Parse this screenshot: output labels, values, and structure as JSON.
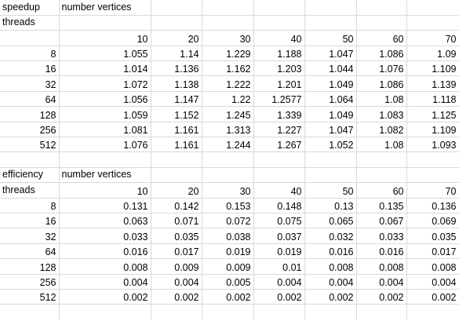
{
  "sheet": {
    "blocks": [
      {
        "label": "speedup",
        "vertices_label": "number vertices",
        "threads_label": "threads",
        "vertex_counts": [
          "10",
          "20",
          "30",
          "40",
          "50",
          "60",
          "70"
        ],
        "rows": [
          {
            "threads": "8",
            "values": [
              "1.055",
              "1.14",
              "1.229",
              "1.188",
              "1.047",
              "1.086",
              "1.09"
            ]
          },
          {
            "threads": "16",
            "values": [
              "1.014",
              "1.136",
              "1.162",
              "1.203",
              "1.044",
              "1.076",
              "1.109"
            ]
          },
          {
            "threads": "32",
            "values": [
              "1.072",
              "1.138",
              "1.222",
              "1.201",
              "1.049",
              "1.086",
              "1.139"
            ]
          },
          {
            "threads": "64",
            "values": [
              "1.056",
              "1.147",
              "1.22",
              "1.2577",
              "1.064",
              "1.08",
              "1.118"
            ]
          },
          {
            "threads": "128",
            "values": [
              "1.059",
              "1.152",
              "1.245",
              "1.339",
              "1.049",
              "1.083",
              "1.125"
            ]
          },
          {
            "threads": "256",
            "values": [
              "1.081",
              "1.161",
              "1.313",
              "1.227",
              "1.047",
              "1.082",
              "1.109"
            ]
          },
          {
            "threads": "512",
            "values": [
              "1.076",
              "1.161",
              "1.244",
              "1.267",
              "1.052",
              "1.08",
              "1.093"
            ]
          }
        ]
      },
      {
        "label": "efficiency",
        "vertices_label": "number vertices",
        "threads_label": "threads",
        "vertex_counts": [
          "10",
          "20",
          "30",
          "40",
          "50",
          "60",
          "70"
        ],
        "rows": [
          {
            "threads": "8",
            "values": [
              "0.131",
              "0.142",
              "0.153",
              "0.148",
              "0.13",
              "0.135",
              "0.136"
            ]
          },
          {
            "threads": "16",
            "values": [
              "0.063",
              "0.071",
              "0.072",
              "0.075",
              "0.065",
              "0.067",
              "0.069"
            ]
          },
          {
            "threads": "32",
            "values": [
              "0.033",
              "0.035",
              "0.038",
              "0.037",
              "0.032",
              "0.033",
              "0.035"
            ]
          },
          {
            "threads": "64",
            "values": [
              "0.016",
              "0.017",
              "0.019",
              "0.019",
              "0.016",
              "0.016",
              "0.017"
            ]
          },
          {
            "threads": "128",
            "values": [
              "0.008",
              "0.009",
              "0.009",
              "0.01",
              "0.008",
              "0.008",
              "0.008"
            ]
          },
          {
            "threads": "256",
            "values": [
              "0.004",
              "0.004",
              "0.005",
              "0.004",
              "0.004",
              "0.004",
              "0.004"
            ]
          },
          {
            "threads": "512",
            "values": [
              "0.002",
              "0.002",
              "0.002",
              "0.002",
              "0.002",
              "0.002",
              "0.002"
            ]
          }
        ]
      }
    ]
  }
}
